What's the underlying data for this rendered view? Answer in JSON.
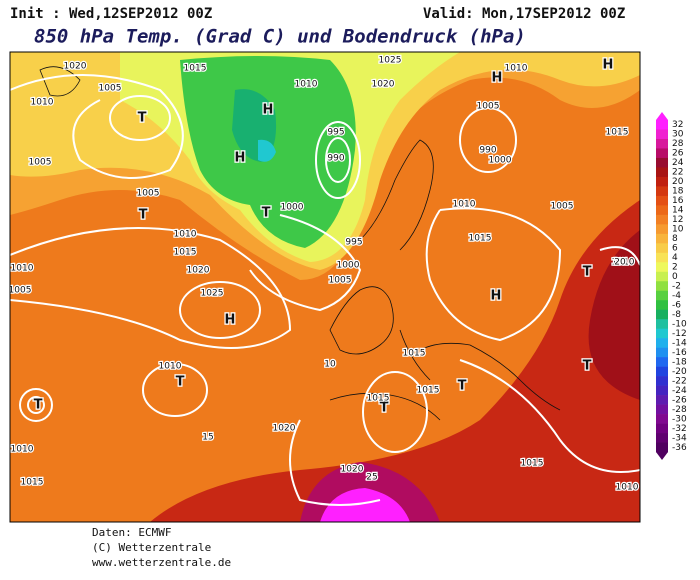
{
  "header": {
    "init": "Init : Wed,12SEP2012 00Z",
    "valid": "Valid: Mon,17SEP2012 00Z",
    "title": "850 hPa Temp. (Grad C) und Bodendruck (hPa)"
  },
  "map": {
    "labels": [
      "1020",
      "1015",
      "1010",
      "1005",
      "T",
      "1005",
      "1005",
      "T",
      "1010",
      "1015",
      "1020",
      "1025",
      "H",
      "1010",
      "1005",
      "T",
      "1010",
      "T",
      "1020",
      "1015",
      "1010",
      "H",
      "H",
      "T",
      "1000",
      "995",
      "990",
      "995",
      "1000",
      "1005",
      "1010",
      "1020",
      "1025",
      "H",
      "1010",
      "H",
      "1005",
      "990",
      "1000",
      "1015",
      "1010",
      "1015",
      "1005",
      "1010",
      "T",
      "H",
      "1015",
      "T",
      "1015",
      "T",
      "1015",
      "1020",
      "1015",
      "T",
      "1010",
      "10",
      "15",
      "20",
      "25"
    ]
  },
  "colorbar": {
    "values": [
      32,
      30,
      28,
      26,
      24,
      22,
      20,
      18,
      16,
      14,
      12,
      10,
      8,
      6,
      4,
      2,
      0,
      -2,
      -4,
      -6,
      -8,
      -10,
      -12,
      -14,
      -16,
      -18,
      -20,
      -22,
      -24,
      -26,
      -28,
      -30,
      -32,
      -34,
      -36
    ],
    "colors": [
      "#ff20ff",
      "#f020d0",
      "#d8189c",
      "#b80c68",
      "#980c30",
      "#a81414",
      "#c02010",
      "#d43810",
      "#e45014",
      "#ec6818",
      "#f28024",
      "#f69a30",
      "#f8b43c",
      "#f8cc48",
      "#f8e256",
      "#eef85c",
      "#c8f050",
      "#90e040",
      "#58d040",
      "#30c040",
      "#18b060",
      "#20c0a0",
      "#20c8d0",
      "#20b0ec",
      "#2090f0",
      "#2068f0",
      "#2044e0",
      "#3030d0",
      "#4424c0",
      "#5e1cb0",
      "#7210a0",
      "#800890",
      "#700080",
      "#600070",
      "#500060"
    ]
  },
  "footer": {
    "source": "Daten: ECMWF",
    "copyright": "(C) Wetterzentrale",
    "url": "www.wetterzentrale.de"
  }
}
